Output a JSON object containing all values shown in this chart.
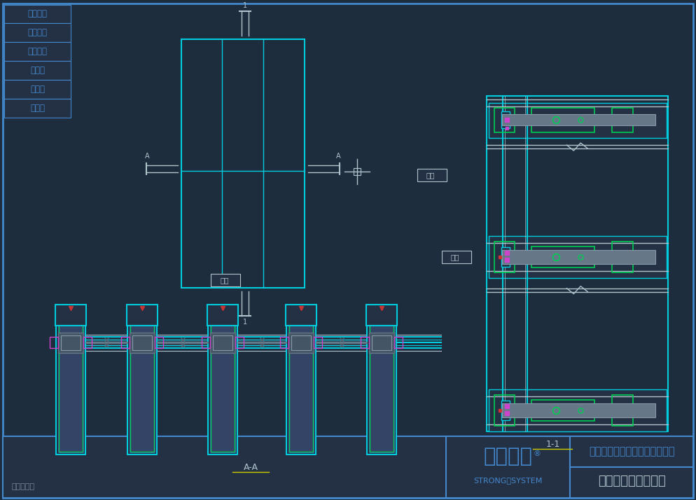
{
  "bg_color": "#1e2d3e",
  "panel_bg": "#243044",
  "border_color": "#4488cc",
  "cw": "#b0c4cc",
  "cc": "#00ccdd",
  "cg": "#00cc55",
  "cb": "#4488cc",
  "cm": "#cc44cc",
  "cy": "#cccc00",
  "cr": "#cc3333",
  "fig_width": 9.94,
  "fig_height": 7.14,
  "left_labels": [
    "安全防火",
    "环保节能",
    "超级防腐",
    "大跨度",
    "更纤细",
    "大通透"
  ],
  "bottom_left_text": "专利产品！",
  "company_name": "西创金属科技（江苏）有限公司",
  "product_name": "直角重型钓幕墙系统",
  "logo_text": "西创系统",
  "logo_sub": "STRONG｜SYSTEM",
  "section_label_aa": "A-A",
  "section_label_11": "1-1",
  "shimei": "室外"
}
